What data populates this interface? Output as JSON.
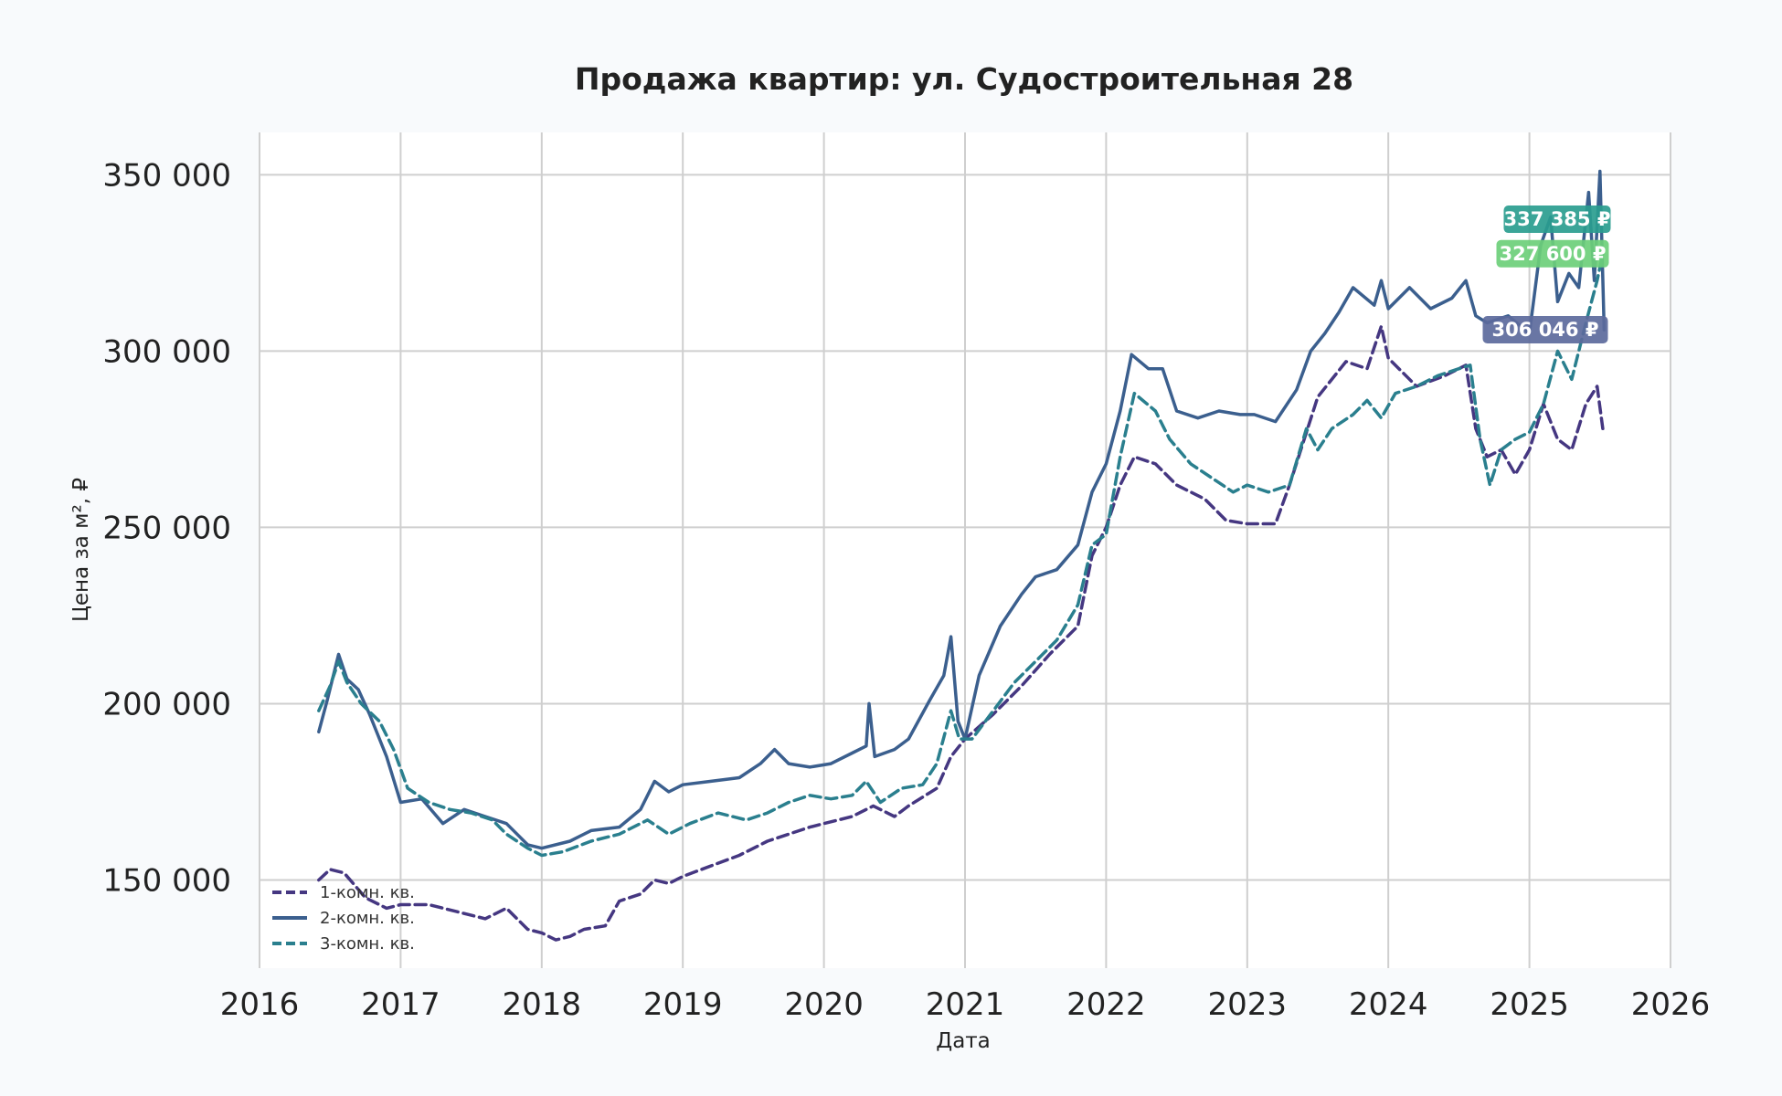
{
  "chart_data": {
    "type": "line",
    "title": "Продажа квартир: ул. Судостроительная 28",
    "xlabel": "Дата",
    "ylabel": "Цена за м², ₽",
    "xlim": [
      2016,
      2026
    ],
    "ylim": [
      125000,
      362000
    ],
    "x_ticks": [
      "2016",
      "2017",
      "2018",
      "2019",
      "2020",
      "2021",
      "2022",
      "2023",
      "2024",
      "2025",
      "2026"
    ],
    "y_ticks": [
      {
        "value": 150000,
        "label": "150 000"
      },
      {
        "value": 200000,
        "label": "200 000"
      },
      {
        "value": 250000,
        "label": "250 000"
      },
      {
        "value": 300000,
        "label": "300 000"
      },
      {
        "value": 350000,
        "label": "350 000"
      }
    ],
    "grid": true,
    "legend_position": "bottom-left",
    "series": [
      {
        "name": "1-комн. кв.",
        "color": "#453781",
        "dash": "dashed",
        "points": [
          [
            2016.42,
            150000
          ],
          [
            2016.5,
            153000
          ],
          [
            2016.6,
            152000
          ],
          [
            2016.75,
            145000
          ],
          [
            2016.9,
            142000
          ],
          [
            2017.0,
            143000
          ],
          [
            2017.2,
            143000
          ],
          [
            2017.4,
            141000
          ],
          [
            2017.6,
            139000
          ],
          [
            2017.75,
            142000
          ],
          [
            2017.9,
            136000
          ],
          [
            2018.0,
            135000
          ],
          [
            2018.1,
            133000
          ],
          [
            2018.2,
            134000
          ],
          [
            2018.3,
            136000
          ],
          [
            2018.45,
            137000
          ],
          [
            2018.55,
            144000
          ],
          [
            2018.7,
            146000
          ],
          [
            2018.8,
            150000
          ],
          [
            2018.9,
            149000
          ],
          [
            2019.0,
            151000
          ],
          [
            2019.2,
            154000
          ],
          [
            2019.4,
            157000
          ],
          [
            2019.6,
            161000
          ],
          [
            2019.75,
            163000
          ],
          [
            2019.9,
            165000
          ],
          [
            2020.0,
            166000
          ],
          [
            2020.2,
            168000
          ],
          [
            2020.35,
            171000
          ],
          [
            2020.5,
            168000
          ],
          [
            2020.6,
            171000
          ],
          [
            2020.8,
            176000
          ],
          [
            2020.9,
            185000
          ],
          [
            2021.0,
            190000
          ],
          [
            2021.2,
            197000
          ],
          [
            2021.4,
            205000
          ],
          [
            2021.6,
            214000
          ],
          [
            2021.8,
            222000
          ],
          [
            2021.9,
            242000
          ],
          [
            2022.0,
            250000
          ],
          [
            2022.1,
            262000
          ],
          [
            2022.2,
            270000
          ],
          [
            2022.35,
            268000
          ],
          [
            2022.5,
            262000
          ],
          [
            2022.7,
            258000
          ],
          [
            2022.85,
            252000
          ],
          [
            2023.0,
            251000
          ],
          [
            2023.2,
            251000
          ],
          [
            2023.3,
            262000
          ],
          [
            2023.5,
            287000
          ],
          [
            2023.7,
            297000
          ],
          [
            2023.85,
            295000
          ],
          [
            2023.95,
            307000
          ],
          [
            2024.0,
            298000
          ],
          [
            2024.2,
            290000
          ],
          [
            2024.4,
            293000
          ],
          [
            2024.55,
            296000
          ],
          [
            2024.62,
            278000
          ],
          [
            2024.7,
            270000
          ],
          [
            2024.8,
            272000
          ],
          [
            2024.9,
            265000
          ],
          [
            2025.0,
            272000
          ],
          [
            2025.1,
            285000
          ],
          [
            2025.2,
            275000
          ],
          [
            2025.3,
            272000
          ],
          [
            2025.4,
            285000
          ],
          [
            2025.48,
            290000
          ],
          [
            2025.52,
            278000
          ]
        ]
      },
      {
        "name": "2-комн. кв.",
        "color": "#3b5f8e",
        "dash": "solid",
        "points": [
          [
            2016.42,
            192000
          ],
          [
            2016.48,
            201000
          ],
          [
            2016.56,
            214000
          ],
          [
            2016.62,
            207000
          ],
          [
            2016.7,
            204000
          ],
          [
            2016.78,
            197000
          ],
          [
            2016.9,
            185000
          ],
          [
            2017.0,
            172000
          ],
          [
            2017.15,
            173000
          ],
          [
            2017.3,
            166000
          ],
          [
            2017.45,
            170000
          ],
          [
            2017.6,
            168000
          ],
          [
            2017.75,
            166000
          ],
          [
            2017.9,
            160000
          ],
          [
            2018.0,
            159000
          ],
          [
            2018.2,
            161000
          ],
          [
            2018.35,
            164000
          ],
          [
            2018.55,
            165000
          ],
          [
            2018.7,
            170000
          ],
          [
            2018.8,
            178000
          ],
          [
            2018.9,
            175000
          ],
          [
            2019.0,
            177000
          ],
          [
            2019.2,
            178000
          ],
          [
            2019.4,
            179000
          ],
          [
            2019.55,
            183000
          ],
          [
            2019.65,
            187000
          ],
          [
            2019.75,
            183000
          ],
          [
            2019.9,
            182000
          ],
          [
            2020.05,
            183000
          ],
          [
            2020.2,
            186000
          ],
          [
            2020.3,
            188000
          ],
          [
            2020.32,
            200000
          ],
          [
            2020.36,
            185000
          ],
          [
            2020.5,
            187000
          ],
          [
            2020.6,
            190000
          ],
          [
            2020.75,
            201000
          ],
          [
            2020.85,
            208000
          ],
          [
            2020.9,
            219000
          ],
          [
            2020.95,
            195000
          ],
          [
            2021.0,
            190000
          ],
          [
            2021.1,
            208000
          ],
          [
            2021.25,
            222000
          ],
          [
            2021.4,
            231000
          ],
          [
            2021.5,
            236000
          ],
          [
            2021.65,
            238000
          ],
          [
            2021.8,
            245000
          ],
          [
            2021.9,
            260000
          ],
          [
            2022.0,
            268000
          ],
          [
            2022.1,
            283000
          ],
          [
            2022.18,
            299000
          ],
          [
            2022.3,
            295000
          ],
          [
            2022.4,
            295000
          ],
          [
            2022.5,
            283000
          ],
          [
            2022.65,
            281000
          ],
          [
            2022.8,
            283000
          ],
          [
            2022.95,
            282000
          ],
          [
            2023.05,
            282000
          ],
          [
            2023.2,
            280000
          ],
          [
            2023.35,
            289000
          ],
          [
            2023.45,
            300000
          ],
          [
            2023.55,
            305000
          ],
          [
            2023.65,
            311000
          ],
          [
            2023.75,
            318000
          ],
          [
            2023.9,
            313000
          ],
          [
            2023.95,
            320000
          ],
          [
            2024.0,
            312000
          ],
          [
            2024.15,
            318000
          ],
          [
            2024.3,
            312000
          ],
          [
            2024.45,
            315000
          ],
          [
            2024.55,
            320000
          ],
          [
            2024.62,
            310000
          ],
          [
            2024.7,
            308000
          ],
          [
            2024.85,
            310000
          ],
          [
            2025.0,
            305000
          ],
          [
            2025.08,
            330000
          ],
          [
            2025.15,
            338000
          ],
          [
            2025.2,
            314000
          ],
          [
            2025.28,
            322000
          ],
          [
            2025.35,
            318000
          ],
          [
            2025.42,
            345000
          ],
          [
            2025.46,
            320000
          ],
          [
            2025.5,
            351000
          ],
          [
            2025.53,
            306000
          ]
        ]
      },
      {
        "name": "3-комн. кв.",
        "color": "#2a7f8e",
        "dash": "dashed",
        "points": [
          [
            2016.42,
            198000
          ],
          [
            2016.5,
            205000
          ],
          [
            2016.56,
            212000
          ],
          [
            2016.62,
            206000
          ],
          [
            2016.72,
            200000
          ],
          [
            2016.85,
            195000
          ],
          [
            2016.95,
            187000
          ],
          [
            2017.05,
            176000
          ],
          [
            2017.2,
            172000
          ],
          [
            2017.35,
            170000
          ],
          [
            2017.5,
            169000
          ],
          [
            2017.65,
            167000
          ],
          [
            2017.75,
            163000
          ],
          [
            2017.9,
            159000
          ],
          [
            2018.0,
            157000
          ],
          [
            2018.15,
            158000
          ],
          [
            2018.35,
            161000
          ],
          [
            2018.55,
            163000
          ],
          [
            2018.75,
            167000
          ],
          [
            2018.9,
            163000
          ],
          [
            2019.05,
            166000
          ],
          [
            2019.25,
            169000
          ],
          [
            2019.45,
            167000
          ],
          [
            2019.6,
            169000
          ],
          [
            2019.75,
            172000
          ],
          [
            2019.9,
            174000
          ],
          [
            2020.05,
            173000
          ],
          [
            2020.2,
            174000
          ],
          [
            2020.3,
            178000
          ],
          [
            2020.4,
            172000
          ],
          [
            2020.55,
            176000
          ],
          [
            2020.7,
            177000
          ],
          [
            2020.8,
            183000
          ],
          [
            2020.9,
            198000
          ],
          [
            2020.96,
            190000
          ],
          [
            2021.05,
            190000
          ],
          [
            2021.2,
            198000
          ],
          [
            2021.35,
            206000
          ],
          [
            2021.5,
            212000
          ],
          [
            2021.65,
            218000
          ],
          [
            2021.8,
            228000
          ],
          [
            2021.9,
            245000
          ],
          [
            2022.0,
            248000
          ],
          [
            2022.1,
            270000
          ],
          [
            2022.2,
            288000
          ],
          [
            2022.35,
            283000
          ],
          [
            2022.45,
            275000
          ],
          [
            2022.6,
            268000
          ],
          [
            2022.75,
            264000
          ],
          [
            2022.9,
            260000
          ],
          [
            2023.0,
            262000
          ],
          [
            2023.15,
            260000
          ],
          [
            2023.3,
            262000
          ],
          [
            2023.42,
            278000
          ],
          [
            2023.5,
            272000
          ],
          [
            2023.6,
            278000
          ],
          [
            2023.75,
            282000
          ],
          [
            2023.85,
            286000
          ],
          [
            2023.95,
            281000
          ],
          [
            2024.05,
            288000
          ],
          [
            2024.2,
            290000
          ],
          [
            2024.35,
            293000
          ],
          [
            2024.5,
            295000
          ],
          [
            2024.58,
            296000
          ],
          [
            2024.65,
            275000
          ],
          [
            2024.72,
            262000
          ],
          [
            2024.8,
            272000
          ],
          [
            2024.9,
            275000
          ],
          [
            2025.0,
            277000
          ],
          [
            2025.1,
            285000
          ],
          [
            2025.2,
            300000
          ],
          [
            2025.3,
            292000
          ],
          [
            2025.4,
            308000
          ],
          [
            2025.48,
            320000
          ],
          [
            2025.52,
            327600
          ]
        ]
      }
    ],
    "annotations": [
      {
        "text": "337 385 ₽",
        "y": 337385,
        "color": "#2a9d8f"
      },
      {
        "text": "327 600 ₽",
        "y": 327600,
        "color": "#6ccf7a"
      },
      {
        "text": "306 046 ₽",
        "y": 306046,
        "color": "#5c6a9c"
      }
    ]
  }
}
